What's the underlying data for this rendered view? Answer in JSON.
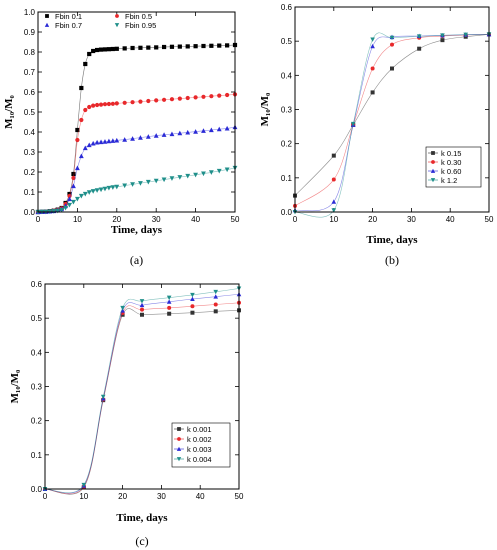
{
  "chart_data": [
    {
      "type": "scatter",
      "panel_label": "(a)",
      "xlabel": "Time, days",
      "ylabel": "M₁₀/M₀",
      "xlim": [
        0,
        50
      ],
      "ylim": [
        0,
        1.0
      ],
      "xticks": [
        0,
        10,
        20,
        30,
        40,
        50
      ],
      "yticks": [
        0.0,
        0.1,
        0.2,
        0.3,
        0.4,
        0.5,
        0.6,
        0.7,
        0.8,
        0.9,
        1.0
      ],
      "legend_position": "top-left",
      "legend_columns": 2,
      "series": [
        {
          "name": "Fbin 0.1",
          "color": "#000000",
          "marker": "square",
          "x": [
            0,
            1,
            2,
            3,
            4,
            5,
            6,
            7,
            8,
            9,
            10,
            11,
            12,
            13,
            14,
            15,
            16,
            17,
            18,
            19,
            20,
            22,
            24,
            26,
            28,
            30,
            32,
            34,
            36,
            38,
            40,
            42,
            44,
            46,
            48,
            50
          ],
          "y": [
            0,
            0.001,
            0.002,
            0.004,
            0.007,
            0.012,
            0.02,
            0.045,
            0.09,
            0.19,
            0.41,
            0.62,
            0.74,
            0.79,
            0.805,
            0.81,
            0.812,
            0.813,
            0.814,
            0.815,
            0.816,
            0.818,
            0.82,
            0.821,
            0.822,
            0.823,
            0.825,
            0.826,
            0.827,
            0.828,
            0.829,
            0.83,
            0.831,
            0.832,
            0.833,
            0.835
          ]
        },
        {
          "name": "Fbin 0.5",
          "color": "#e8282b",
          "marker": "circle",
          "x": [
            0,
            1,
            2,
            3,
            4,
            5,
            6,
            7,
            8,
            9,
            10,
            11,
            12,
            13,
            14,
            15,
            16,
            17,
            18,
            19,
            20,
            22,
            24,
            26,
            28,
            30,
            32,
            34,
            36,
            38,
            40,
            42,
            44,
            46,
            48,
            50
          ],
          "y": [
            0,
            0.001,
            0.002,
            0.004,
            0.007,
            0.011,
            0.018,
            0.04,
            0.08,
            0.17,
            0.36,
            0.46,
            0.51,
            0.525,
            0.532,
            0.535,
            0.537,
            0.539,
            0.54,
            0.541,
            0.543,
            0.546,
            0.549,
            0.552,
            0.555,
            0.558,
            0.561,
            0.564,
            0.567,
            0.57,
            0.573,
            0.576,
            0.579,
            0.582,
            0.585,
            0.588
          ]
        },
        {
          "name": "Fbin 0.7",
          "color": "#2a2ad6",
          "marker": "triangle-up",
          "x": [
            0,
            1,
            2,
            3,
            4,
            5,
            6,
            7,
            8,
            9,
            10,
            11,
            12,
            13,
            14,
            15,
            16,
            17,
            18,
            19,
            20,
            22,
            24,
            26,
            28,
            30,
            32,
            34,
            36,
            38,
            40,
            42,
            44,
            46,
            48,
            50
          ],
          "y": [
            0,
            0.001,
            0.002,
            0.003,
            0.005,
            0.009,
            0.015,
            0.03,
            0.065,
            0.13,
            0.22,
            0.28,
            0.32,
            0.335,
            0.343,
            0.348,
            0.35,
            0.352,
            0.354,
            0.356,
            0.358,
            0.362,
            0.367,
            0.372,
            0.377,
            0.382,
            0.386,
            0.39,
            0.394,
            0.398,
            0.402,
            0.406,
            0.41,
            0.414,
            0.418,
            0.425
          ]
        },
        {
          "name": "Fbin 0.95",
          "color": "#1f8f8a",
          "marker": "triangle-down",
          "x": [
            0,
            1,
            2,
            3,
            4,
            5,
            6,
            7,
            8,
            9,
            10,
            11,
            12,
            13,
            14,
            15,
            16,
            17,
            18,
            19,
            20,
            22,
            24,
            26,
            28,
            30,
            32,
            34,
            36,
            38,
            40,
            42,
            44,
            46,
            48,
            50
          ],
          "y": [
            0,
            0.001,
            0.001,
            0.002,
            0.004,
            0.006,
            0.01,
            0.02,
            0.035,
            0.05,
            0.065,
            0.08,
            0.09,
            0.098,
            0.104,
            0.108,
            0.112,
            0.116,
            0.12,
            0.123,
            0.126,
            0.132,
            0.138,
            0.144,
            0.15,
            0.156,
            0.162,
            0.168,
            0.174,
            0.18,
            0.186,
            0.192,
            0.198,
            0.205,
            0.212,
            0.22
          ]
        }
      ]
    },
    {
      "type": "scatter",
      "panel_label": "(b)",
      "xlabel": "Time, days",
      "ylabel": "M₁₀/M₀",
      "xlim": [
        0,
        50
      ],
      "ylim": [
        0,
        0.6
      ],
      "xticks": [
        0,
        10,
        20,
        30,
        40,
        50
      ],
      "yticks": [
        0.0,
        0.1,
        0.2,
        0.3,
        0.4,
        0.5,
        0.6
      ],
      "legend_position": "center-right",
      "series": [
        {
          "name": "k 0.15",
          "color": "#333333",
          "marker": "square",
          "x": [
            0,
            10,
            15,
            20,
            25,
            32,
            38,
            44,
            50
          ],
          "y": [
            0.048,
            0.165,
            0.255,
            0.35,
            0.42,
            0.478,
            0.503,
            0.513,
            0.52
          ]
        },
        {
          "name": "k 0.30",
          "color": "#e8282b",
          "marker": "circle",
          "x": [
            0,
            10,
            15,
            20,
            25,
            32,
            38,
            44,
            50
          ],
          "y": [
            0.018,
            0.095,
            0.255,
            0.42,
            0.49,
            0.51,
            0.515,
            0.518,
            0.52
          ]
        },
        {
          "name": "k 0.60",
          "color": "#2a2ad6",
          "marker": "triangle-up",
          "x": [
            0,
            10,
            15,
            20,
            25,
            32,
            38,
            44,
            50
          ],
          "y": [
            0.005,
            0.03,
            0.255,
            0.485,
            0.512,
            0.515,
            0.517,
            0.519,
            0.52
          ]
        },
        {
          "name": "k 1.2",
          "color": "#1f8f8a",
          "marker": "triangle-down",
          "x": [
            0,
            10,
            15,
            20,
            25,
            32,
            38,
            44,
            50
          ],
          "y": [
            0.0,
            0.005,
            0.258,
            0.505,
            0.51,
            0.514,
            0.517,
            0.519,
            0.52
          ]
        }
      ]
    },
    {
      "type": "scatter",
      "panel_label": "(c)",
      "xlabel": "Time, days",
      "ylabel": "M₁₀/M₀",
      "xlim": [
        0,
        50
      ],
      "ylim": [
        0,
        0.6
      ],
      "xticks": [
        0,
        10,
        20,
        30,
        40,
        50
      ],
      "yticks": [
        0.0,
        0.1,
        0.2,
        0.3,
        0.4,
        0.5,
        0.6
      ],
      "legend_position": "bottom-right",
      "series": [
        {
          "name": "k 0.001",
          "color": "#333333",
          "marker": "square",
          "x": [
            0,
            10,
            15,
            20,
            25,
            32,
            38,
            44,
            50
          ],
          "y": [
            0.0,
            0.005,
            0.26,
            0.51,
            0.51,
            0.513,
            0.516,
            0.52,
            0.523
          ]
        },
        {
          "name": "k 0.002",
          "color": "#e8282b",
          "marker": "circle",
          "x": [
            0,
            10,
            15,
            20,
            25,
            32,
            38,
            44,
            50
          ],
          "y": [
            0.0,
            0.007,
            0.262,
            0.515,
            0.525,
            0.53,
            0.535,
            0.54,
            0.545
          ]
        },
        {
          "name": "k 0.003",
          "color": "#2a2ad6",
          "marker": "triangle-up",
          "x": [
            0,
            10,
            15,
            20,
            25,
            32,
            38,
            44,
            50
          ],
          "y": [
            0.0,
            0.01,
            0.265,
            0.522,
            0.538,
            0.548,
            0.556,
            0.563,
            0.57
          ]
        },
        {
          "name": "k 0.004",
          "color": "#1f8f8a",
          "marker": "triangle-down",
          "x": [
            0,
            10,
            15,
            20,
            25,
            32,
            38,
            44,
            50
          ],
          "y": [
            0.0,
            0.012,
            0.27,
            0.53,
            0.55,
            0.56,
            0.568,
            0.577,
            0.587
          ]
        }
      ]
    }
  ]
}
